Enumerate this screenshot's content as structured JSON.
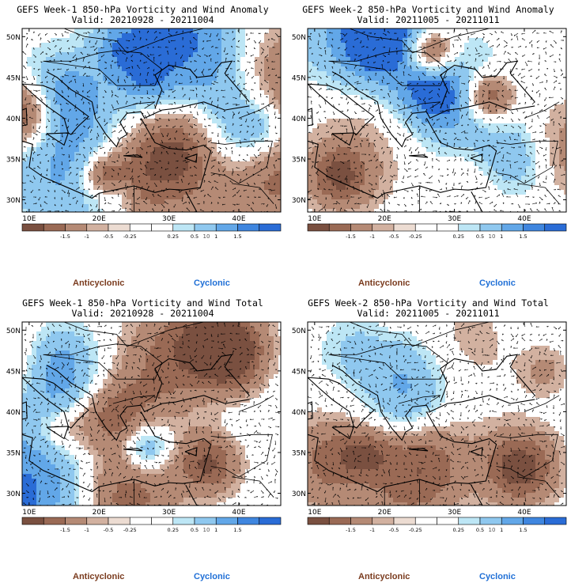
{
  "panels": [
    {
      "title_line1": "GEFS Week-1 850-hPa Vorticity and Wind Anomaly",
      "title_line2": "Valid: 20210928 - 20211004",
      "label_anticyclonic": "Anticyclonic",
      "label_cyclonic": "Cyclonic",
      "seed": 11
    },
    {
      "title_line1": "GEFS Week-2 850-hPa Vorticity and Wind Anomaly",
      "title_line2": "Valid: 20211005 - 20211011",
      "label_anticyclonic": "Anticyclonic",
      "label_cyclonic": "Cyclonic",
      "seed": 23
    },
    {
      "title_line1": "GEFS Week-1 850-hPa Vorticity and Wind Total",
      "title_line2": "Valid: 20210928 - 20211004",
      "label_anticyclonic": "Anticyclonic",
      "label_cyclonic": "Cyclonic",
      "seed": 37
    },
    {
      "title_line1": "GEFS Week-2 850-hPa Vorticity and Wind Total",
      "title_line2": "Valid: 20211005 - 20211011",
      "label_anticyclonic": "Anticyclonic",
      "label_cyclonic": "Cyclonic",
      "seed": 51
    }
  ],
  "chart_data": {
    "type": "heatmap",
    "variable": "850-hPa Vorticity",
    "x_ticks": [
      "10E",
      "20E",
      "30E",
      "40E"
    ],
    "y_ticks": [
      "50N",
      "45N",
      "40N",
      "35N",
      "30N"
    ],
    "lon_range": [
      9,
      46
    ],
    "lat_range": [
      28.5,
      51
    ],
    "colorbar": {
      "levels": [
        "-1.5",
        "-1",
        "-0.5",
        "-0.25",
        "0.25",
        "0.5",
        "1",
        "1.5"
      ],
      "unit_label": "10",
      "colors": [
        "#7a5040",
        "#9a6a55",
        "#b58a75",
        "#d2b1a0",
        "#ecdcd2",
        "#ffffff",
        "#ffffff",
        "#bde6f5",
        "#8fc8ef",
        "#62a7e8",
        "#3f86df",
        "#2a6cd6"
      ]
    }
  }
}
